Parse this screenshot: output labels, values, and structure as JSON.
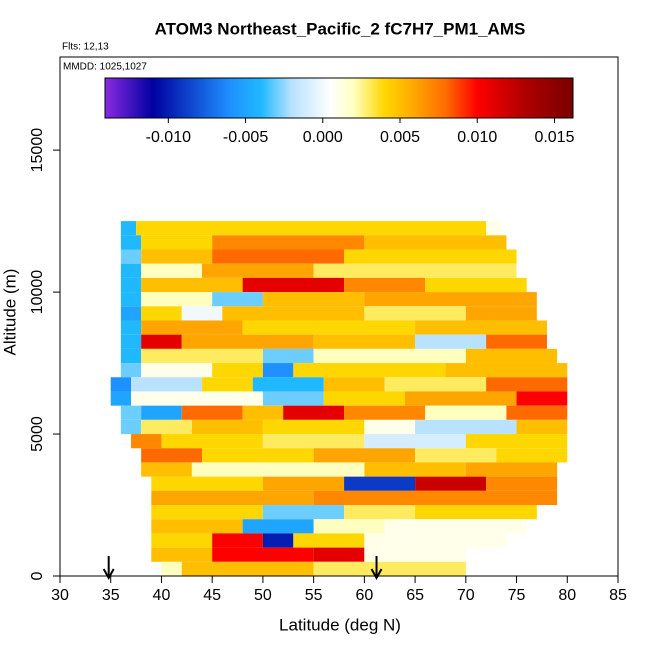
{
  "chart_data": {
    "type": "heatmap",
    "title": "ATOM3 Northeast_Pacific_2 fC7H7_PM1_AMS",
    "notes": [
      "Flts: 12,13",
      "MMDD: 1025,1027"
    ],
    "xlabel": "Latitude (deg N)",
    "ylabel": "Altitude (m)",
    "xlim": [
      30,
      85
    ],
    "xticks": [
      30,
      35,
      40,
      45,
      50,
      55,
      60,
      65,
      70,
      75,
      80,
      85
    ],
    "ylim": [
      0,
      18280
    ],
    "yticks": [
      0,
      5000,
      10000,
      15000
    ],
    "clim": [
      -0.0141,
      0.0162
    ],
    "cticks": [
      {
        "value": -0.01,
        "label": "-0.010"
      },
      {
        "value": -0.005,
        "label": "-0.005"
      },
      {
        "value": 0,
        "label": "0.000"
      },
      {
        "value": 0.005,
        "label": "0.005"
      },
      {
        "value": 0.01,
        "label": "0.010"
      },
      {
        "value": 0.015,
        "label": "0.015"
      }
    ],
    "colorscale": [
      {
        "value": -0.0141,
        "color": "#8a2be2"
      },
      {
        "value": -0.011,
        "color": "#0000a0"
      },
      {
        "value": -0.006,
        "color": "#1e90ff"
      },
      {
        "value": -0.004,
        "color": "#20b8ff"
      },
      {
        "value": -0.002,
        "color": "#b8e2ff"
      },
      {
        "value": 0.0005,
        "color": "#ffffff"
      },
      {
        "value": 0.002,
        "color": "#ffffc0"
      },
      {
        "value": 0.004,
        "color": "#ffd700"
      },
      {
        "value": 0.006,
        "color": "#ffa500"
      },
      {
        "value": 0.008,
        "color": "#ff6a00"
      },
      {
        "value": 0.01,
        "color": "#ff0000"
      },
      {
        "value": 0.013,
        "color": "#b00000"
      },
      {
        "value": 0.0162,
        "color": "#7a0000"
      }
    ],
    "arrows_x": [
      34.8,
      61.2
    ],
    "rows": [
      {
        "alt": [
          12000,
          12500
        ],
        "lat": [
          36,
          37.5,
          72,
          73.5
        ],
        "values": [
          -0.004,
          0.004,
          0.001
        ]
      },
      {
        "alt": [
          11500,
          12000
        ],
        "lat": [
          36,
          38,
          45,
          60,
          74
        ],
        "values": [
          -0.004,
          0.004,
          0.007,
          0.005
        ]
      },
      {
        "alt": [
          11000,
          11500
        ],
        "lat": [
          36,
          38,
          45,
          58,
          75
        ],
        "values": [
          -0.003,
          0.005,
          0.008,
          0.004
        ]
      },
      {
        "alt": [
          10500,
          11000
        ],
        "lat": [
          36,
          38,
          44,
          55,
          75
        ],
        "values": [
          -0.004,
          0.002,
          0.006,
          0.003
        ]
      },
      {
        "alt": [
          10000,
          10500
        ],
        "lat": [
          36,
          38,
          48,
          58,
          66,
          76
        ],
        "values": [
          -0.004,
          0.005,
          0.011,
          0.007,
          0.004
        ]
      },
      {
        "alt": [
          9500,
          10000
        ],
        "lat": [
          36,
          38,
          45,
          50,
          60,
          77
        ],
        "values": [
          -0.004,
          0.002,
          -0.003,
          0.005,
          0.006
        ]
      },
      {
        "alt": [
          9000,
          9500
        ],
        "lat": [
          36,
          38,
          42,
          46,
          60,
          70,
          77
        ],
        "values": [
          -0.005,
          0.004,
          0,
          0.005,
          0.003,
          0.006
        ]
      },
      {
        "alt": [
          8500,
          9000
        ],
        "lat": [
          36,
          38,
          48,
          65,
          78
        ],
        "values": [
          -0.004,
          0.006,
          0.004,
          0.005
        ]
      },
      {
        "alt": [
          8000,
          8500
        ],
        "lat": [
          36,
          38,
          42,
          55,
          65,
          72,
          78
        ],
        "values": [
          -0.004,
          0.011,
          0.006,
          0.005,
          -0.002,
          0.008
        ]
      },
      {
        "alt": [
          7500,
          8000
        ],
        "lat": [
          36,
          38,
          50,
          55,
          70,
          79
        ],
        "values": [
          -0.004,
          0.003,
          -0.003,
          0.002,
          0.005
        ]
      },
      {
        "alt": [
          7000,
          7500
        ],
        "lat": [
          36,
          38,
          45,
          50,
          53,
          68,
          80
        ],
        "values": [
          -0.003,
          0.001,
          0.004,
          -0.006,
          0.004,
          0.005
        ]
      },
      {
        "alt": [
          6500,
          7000
        ],
        "lat": [
          35,
          37,
          44,
          49,
          56,
          62,
          72,
          80
        ],
        "values": [
          -0.006,
          -0.002,
          0.004,
          -0.004,
          0.005,
          0.003,
          0.008
        ]
      },
      {
        "alt": [
          6000,
          6500
        ],
        "lat": [
          35,
          37,
          50,
          56,
          64,
          75,
          80
        ],
        "values": [
          -0.005,
          0.001,
          -0.003,
          0.004,
          0.006,
          0.01
        ]
      },
      {
        "alt": [
          5500,
          6000
        ],
        "lat": [
          36,
          38,
          42,
          48,
          52,
          58,
          66,
          74,
          80
        ],
        "values": [
          -0.003,
          -0.005,
          0.008,
          0.005,
          0.011,
          0.007,
          0.002,
          0.008
        ]
      },
      {
        "alt": [
          5000,
          5500
        ],
        "lat": [
          36,
          38,
          43,
          50,
          60,
          65,
          75,
          80
        ],
        "values": [
          -0.003,
          0.003,
          0.005,
          0.004,
          0.001,
          -0.002,
          0.005
        ]
      },
      {
        "alt": [
          4500,
          5000
        ],
        "lat": [
          37,
          40,
          50,
          60,
          70,
          80
        ],
        "values": [
          0.007,
          0.004,
          0.003,
          -0.001,
          0.004
        ]
      },
      {
        "alt": [
          4000,
          4500
        ],
        "lat": [
          38,
          44,
          55,
          65,
          73,
          80
        ],
        "values": [
          0.008,
          0.004,
          0.006,
          0.003,
          0.004
        ]
      },
      {
        "alt": [
          3500,
          4000
        ],
        "lat": [
          38,
          43,
          60,
          70,
          79
        ],
        "values": [
          0.005,
          0.002,
          0.005,
          0.006
        ]
      },
      {
        "alt": [
          3000,
          3500
        ],
        "lat": [
          39,
          50,
          58,
          65,
          72,
          79
        ],
        "values": [
          0.004,
          0.006,
          -0.009,
          0.012,
          0.007
        ]
      },
      {
        "alt": [
          2500,
          3000
        ],
        "lat": [
          39,
          55,
          79
        ],
        "values": [
          0.006,
          0.007
        ]
      },
      {
        "alt": [
          2000,
          2500
        ],
        "lat": [
          39,
          50,
          58,
          65,
          77
        ],
        "values": [
          0.004,
          -0.003,
          0.003,
          0.004
        ]
      },
      {
        "alt": [
          1500,
          2000
        ],
        "lat": [
          39,
          48,
          55,
          62,
          76
        ],
        "values": [
          0.005,
          -0.005,
          0.002,
          0.001
        ]
      },
      {
        "alt": [
          1000,
          1500
        ],
        "lat": [
          39,
          45,
          50,
          53,
          60,
          74
        ],
        "values": [
          0.004,
          0.01,
          -0.01,
          0.004,
          0.001
        ]
      },
      {
        "alt": [
          500,
          1000
        ],
        "lat": [
          39,
          45,
          55,
          60,
          70
        ],
        "values": [
          0.005,
          0.01,
          0.011,
          0.001
        ]
      },
      {
        "alt": [
          0,
          500
        ],
        "lat": [
          40,
          42,
          55,
          70
        ],
        "values": [
          0.002,
          0.005,
          0.003
        ]
      }
    ]
  }
}
